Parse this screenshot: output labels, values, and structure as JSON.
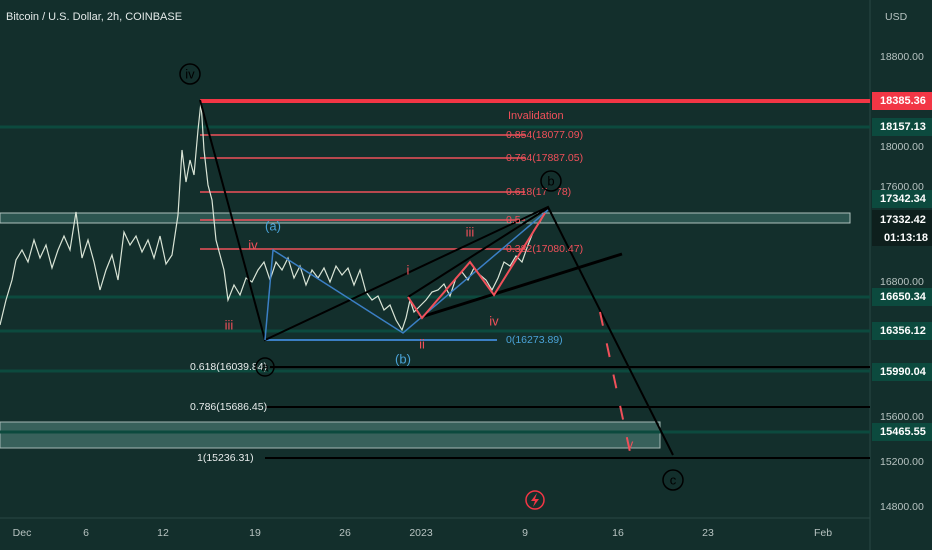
{
  "header": {
    "title": "Bitcoin / U.S. Dollar, 2h, COINBASE",
    "currency": "USD"
  },
  "price_axis": [
    "18800.00",
    "18000.00",
    "17600.00",
    "16800.00",
    "15600.00",
    "15200.00",
    "14800.00"
  ],
  "price_badges": [
    "18385.36",
    "18157.13",
    "17342.34",
    "17332.42",
    "01:13:18",
    "16650.34",
    "16356.12",
    "15990.04",
    "15465.55"
  ],
  "date_axis": [
    "Dec",
    "6",
    "12",
    "19",
    "26",
    "2023",
    "9",
    "16",
    "23",
    "Feb"
  ],
  "annotation": "Invalidation",
  "fib_levels": [
    "0.854(18077.09)",
    "0.764(17887.05)",
    "0.618(17",
    "78)",
    "0.5",
    "0.382(17080.47)",
    "0(16273.89)",
    "0.618(16039.84)",
    "0.786(15686.45)",
    "1(15236.31)"
  ],
  "wave_labels": [
    "iv",
    "b",
    "a",
    "c",
    "(a)",
    "(b)",
    "iv",
    "iii",
    "i",
    "ii",
    "iii",
    "iv",
    "v"
  ]
}
